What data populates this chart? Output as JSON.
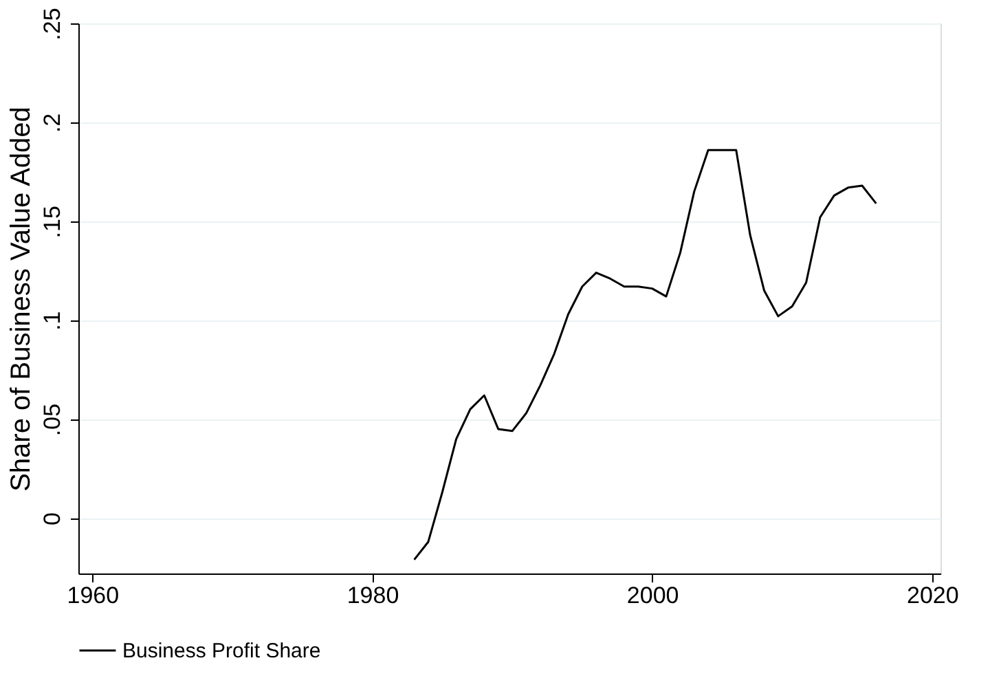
{
  "chart_data": {
    "type": "line",
    "ylabel": "Share of Business Value Added",
    "x": [
      1983,
      1984,
      1985,
      1986,
      1987,
      1988,
      1989,
      1990,
      1991,
      1992,
      1993,
      1994,
      1995,
      1996,
      1997,
      1998,
      1999,
      2000,
      2001,
      2002,
      2003,
      2004,
      2005,
      2006,
      2007,
      2008,
      2009,
      2010,
      2011,
      2012,
      2013,
      2014,
      2015,
      2016
    ],
    "series": [
      {
        "name": "Business Profit Share",
        "color": "#000000",
        "values": [
          -0.021,
          -0.012,
          0.013,
          0.04,
          0.055,
          0.062,
          0.045,
          0.044,
          0.053,
          0.067,
          0.083,
          0.103,
          0.117,
          0.124,
          0.121,
          0.117,
          0.117,
          0.116,
          0.112,
          0.134,
          0.165,
          0.186,
          0.186,
          0.186,
          0.143,
          0.115,
          0.102,
          0.107,
          0.119,
          0.152,
          0.163,
          0.167,
          0.168,
          0.159
        ]
      }
    ],
    "xlim": [
      1959,
      2020.6
    ],
    "xticks": [
      1960,
      1980,
      2000,
      2020
    ],
    "ylim": [
      -0.028,
      0.25
    ],
    "yticks": [
      {
        "value": 0,
        "label": "0"
      },
      {
        "value": 0.05,
        "label": ".05"
      },
      {
        "value": 0.1,
        "label": ".1"
      },
      {
        "value": 0.15,
        "label": ".15"
      },
      {
        "value": 0.2,
        "label": ".2"
      },
      {
        "value": 0.25,
        "label": ".25"
      }
    ],
    "grid": "y",
    "legend": "bottom",
    "marker": "none",
    "line_style": "solid"
  }
}
